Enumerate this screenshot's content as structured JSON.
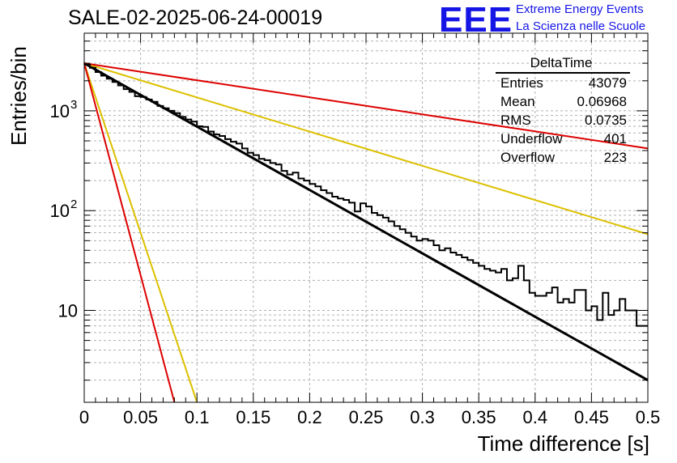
{
  "page": {
    "title": "SALE-02-2025-06-24-00019",
    "logo": {
      "text": "EEE",
      "line1": "Extreme Energy Events",
      "line2": "La Scienza nelle Scuole"
    }
  },
  "stats_box": {
    "title": "DeltaTime",
    "rows": [
      {
        "label": "Entries",
        "value": "43079"
      },
      {
        "label": "Mean",
        "value": "0.06968"
      },
      {
        "label": "RMS",
        "value": "0.0735"
      },
      {
        "label": "Underflow",
        "value": "401"
      },
      {
        "label": "Overflow",
        "value": "223"
      }
    ]
  },
  "chart_data": {
    "type": "line",
    "title": "SALE-02-2025-06-24-00019",
    "xlabel": "Time difference [s]",
    "ylabel": "Entries/bin",
    "xlim": [
      0,
      0.5
    ],
    "ylim": [
      1.2,
      6000
    ],
    "yscale": "log",
    "grid": true,
    "x_ticks": [
      "0",
      "0.05",
      "0.1",
      "0.15",
      "0.2",
      "0.25",
      "0.3",
      "0.35",
      "0.4",
      "0.45",
      "0.5"
    ],
    "y_ticks": [
      {
        "value": 10,
        "label": "10"
      },
      {
        "value": 100,
        "label": "10",
        "exp": "2"
      },
      {
        "value": 1000,
        "label": "10",
        "exp": "3"
      }
    ],
    "histogram": {
      "bin_width": 0.005,
      "x": [
        0.0025,
        0.0075,
        0.0125,
        0.0175,
        0.0225,
        0.0275,
        0.0325,
        0.0375,
        0.0425,
        0.0475,
        0.0525,
        0.0575,
        0.0625,
        0.0675,
        0.0725,
        0.0775,
        0.0825,
        0.0875,
        0.0925,
        0.0975,
        0.1025,
        0.1075,
        0.1125,
        0.1175,
        0.1225,
        0.1275,
        0.1325,
        0.1375,
        0.1425,
        0.1475,
        0.1525,
        0.1575,
        0.1625,
        0.1675,
        0.1725,
        0.1775,
        0.1825,
        0.1875,
        0.1925,
        0.1975,
        0.2025,
        0.2075,
        0.2125,
        0.2175,
        0.2225,
        0.2275,
        0.2325,
        0.2375,
        0.2425,
        0.2475,
        0.2525,
        0.2575,
        0.2625,
        0.2675,
        0.2725,
        0.2775,
        0.2825,
        0.2875,
        0.2925,
        0.2975,
        0.3025,
        0.3075,
        0.3125,
        0.3175,
        0.3225,
        0.3275,
        0.3325,
        0.3375,
        0.3425,
        0.3475,
        0.3525,
        0.3575,
        0.3625,
        0.3675,
        0.3725,
        0.3775,
        0.3825,
        0.3875,
        0.3925,
        0.3975,
        0.4025,
        0.4075,
        0.4125,
        0.4175,
        0.4225,
        0.4275,
        0.4325,
        0.4375,
        0.4425,
        0.4475,
        0.4525,
        0.4575,
        0.4625,
        0.4675,
        0.4725,
        0.4775,
        0.4825,
        0.4875,
        0.4925,
        0.4975
      ],
      "y": [
        2900,
        2700,
        2450,
        2250,
        2100,
        1950,
        1800,
        1650,
        1550,
        1400,
        1380,
        1300,
        1230,
        1120,
        1060,
        1000,
        950,
        870,
        820,
        780,
        700,
        690,
        620,
        580,
        560,
        520,
        490,
        470,
        420,
        380,
        360,
        330,
        320,
        300,
        290,
        250,
        230,
        240,
        210,
        200,
        185,
        175,
        160,
        150,
        138,
        132,
        128,
        120,
        98,
        118,
        110,
        95,
        90,
        85,
        78,
        70,
        65,
        60,
        55,
        50,
        52,
        50,
        45,
        40,
        42,
        38,
        36,
        34,
        32,
        30,
        28,
        26,
        25,
        24,
        26,
        20,
        21,
        28,
        20,
        15,
        14,
        14,
        15,
        17,
        12,
        13,
        12,
        16,
        16,
        10,
        11,
        8,
        15,
        9,
        10,
        13,
        10,
        10,
        7,
        7
      ]
    },
    "fits": [
      {
        "color": "#000000",
        "y0": 3000,
        "y_at_xmax": 2.0
      },
      {
        "color": "#ddc000",
        "y0": 3000,
        "y_at_xmax": 58
      },
      {
        "color": "#dd0000",
        "y0": 3000,
        "y_at_xmax": 420
      },
      {
        "color": "#ddc000",
        "y0": 3000,
        "x_end": 0.1,
        "y_end": 1.2
      },
      {
        "color": "#dd0000",
        "y0": 3000,
        "x_end": 0.08,
        "y_end": 1.2
      }
    ]
  }
}
